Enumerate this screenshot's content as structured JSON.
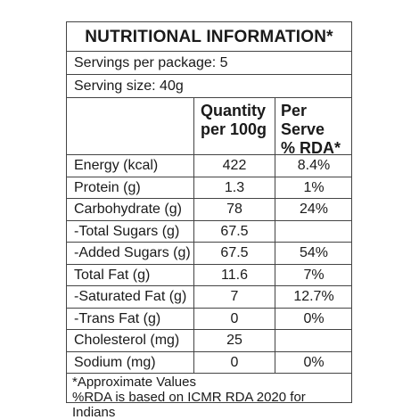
{
  "title": "NUTRITIONAL INFORMATION*",
  "servings_per_package": "Servings per package: 5",
  "serving_size": "Serving size: 40g",
  "columns": {
    "quantity_line1": "Quantity",
    "quantity_line2": "per 100g",
    "rda_line1": "Per Serve",
    "rda_line2": "% RDA*"
  },
  "rows": [
    {
      "label": "Energy (kcal)",
      "qty": "422",
      "rda": "8.4%"
    },
    {
      "label": "Protein (g)",
      "qty": "1.3",
      "rda": "1%"
    },
    {
      "label": "Carbohydrate (g)",
      "qty": "78",
      "rda": "24%"
    },
    {
      "label": "-Total Sugars (g)",
      "qty": "67.5",
      "rda": ""
    },
    {
      "label": "-Added Sugars (g)",
      "qty": "67.5",
      "rda": "54%"
    },
    {
      "label": "Total Fat (g)",
      "qty": "11.6",
      "rda": "7%"
    },
    {
      "label": "-Saturated Fat (g)",
      "qty": "7",
      "rda": "12.7%"
    },
    {
      "label": "-Trans Fat (g)",
      "qty": "0",
      "rda": "0%"
    },
    {
      "label": "Cholesterol (mg)",
      "qty": "25",
      "rda": ""
    },
    {
      "label": "Sodium (mg)",
      "qty": "0",
      "rda": "0%"
    }
  ],
  "footnotes": {
    "line1": "*Approximate Values",
    "line2": "%RDA is based on ICMR RDA 2020 for Indians"
  }
}
